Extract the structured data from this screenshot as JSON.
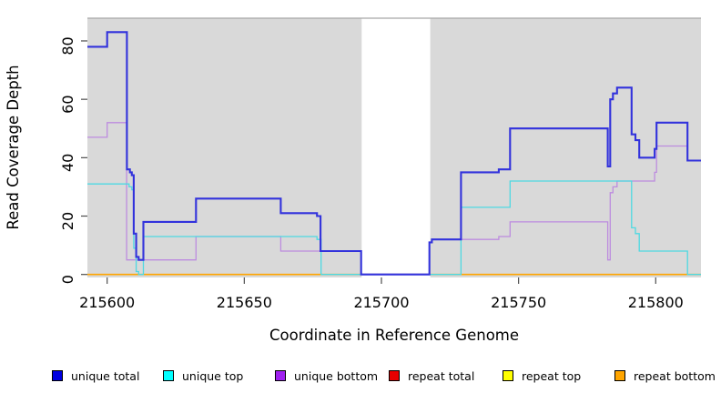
{
  "chart_data": {
    "type": "line",
    "step": true,
    "title": "",
    "xlabel": "Coordinate in Reference Genome",
    "ylabel": "Read Coverage Depth",
    "xlim": [
      215592.8,
      215816.5
    ],
    "ylim": [
      0,
      88
    ],
    "x_ticks": [
      215600,
      215650,
      215700,
      215750,
      215800
    ],
    "y_ticks": [
      0,
      20,
      40,
      60,
      80
    ],
    "grid": false,
    "panel_bg": "#D9D9D9",
    "panel_border_color": "#A8A8A8",
    "gap_region": {
      "x_start": 215692.8,
      "x_end": 215717.8,
      "color": "#FFFFFF"
    },
    "legend_position": "bottom",
    "series": [
      {
        "name": "repeat total",
        "color": "#E60000",
        "width": 1.2,
        "points": [
          [
            215592.8,
            0
          ],
          [
            215816.5,
            0
          ]
        ]
      },
      {
        "name": "repeat top",
        "color": "#FFFF00",
        "width": 1.2,
        "points": [
          [
            215592.8,
            0
          ],
          [
            215816.5,
            0
          ]
        ]
      },
      {
        "name": "repeat bottom",
        "color": "#FFA500",
        "width": 1.7,
        "points": [
          [
            215592.8,
            0
          ],
          [
            215816.5,
            0
          ]
        ]
      },
      {
        "name": "unique bottom",
        "color": "#BD8CDF",
        "width": 1.3,
        "points": [
          [
            215592.8,
            47
          ],
          [
            215600,
            52
          ],
          [
            215607.1,
            5
          ],
          [
            215632.4,
            13
          ],
          [
            215663.3,
            8
          ],
          [
            215692.6,
            0
          ],
          [
            215717.5,
            11
          ],
          [
            215718.4,
            12
          ],
          [
            215742.8,
            13
          ],
          [
            215746.9,
            18
          ],
          [
            215782.5,
            5
          ],
          [
            215783.4,
            28
          ],
          [
            215784.4,
            30
          ],
          [
            215785.9,
            32
          ],
          [
            215799.6,
            35
          ],
          [
            215800.3,
            44
          ],
          [
            215811.6,
            39
          ],
          [
            215816.5,
            39
          ]
        ]
      },
      {
        "name": "unique top",
        "color": "#4ED9E2",
        "width": 1.3,
        "points": [
          [
            215592.8,
            31
          ],
          [
            215608.0,
            30
          ],
          [
            215609.0,
            29
          ],
          [
            215609.7,
            9
          ],
          [
            215610.6,
            1
          ],
          [
            215611.5,
            0
          ],
          [
            215613.2,
            13
          ],
          [
            215676.5,
            12
          ],
          [
            215678.0,
            0
          ],
          [
            215729.0,
            23
          ],
          [
            215746.9,
            32
          ],
          [
            215791.2,
            16
          ],
          [
            215792.6,
            14
          ],
          [
            215794.0,
            8
          ],
          [
            215811.6,
            0
          ],
          [
            215816.5,
            0
          ]
        ]
      },
      {
        "name": "unique total",
        "color": "#3232DC",
        "width": 2.1,
        "points": [
          [
            215592.8,
            78
          ],
          [
            215600,
            83
          ],
          [
            215607.2,
            36
          ],
          [
            215608.3,
            35
          ],
          [
            215609.0,
            34
          ],
          [
            215609.7,
            14
          ],
          [
            215610.6,
            6
          ],
          [
            215611.5,
            5
          ],
          [
            215613.2,
            18
          ],
          [
            215632.4,
            26
          ],
          [
            215663.3,
            21
          ],
          [
            215676.5,
            20
          ],
          [
            215677.8,
            8
          ],
          [
            215692.6,
            0
          ],
          [
            215717.5,
            11
          ],
          [
            215718.4,
            12
          ],
          [
            215729.0,
            35
          ],
          [
            215742.8,
            36
          ],
          [
            215746.9,
            50
          ],
          [
            215782.5,
            37
          ],
          [
            215783.4,
            60
          ],
          [
            215784.4,
            62
          ],
          [
            215785.9,
            64
          ],
          [
            215791.2,
            48
          ],
          [
            215792.6,
            46
          ],
          [
            215794.0,
            40
          ],
          [
            215799.6,
            43
          ],
          [
            215800.3,
            52
          ],
          [
            215811.6,
            39
          ],
          [
            215816.5,
            39
          ]
        ]
      }
    ]
  },
  "legend": {
    "items": [
      {
        "label": "unique total",
        "color": "#0000E1"
      },
      {
        "label": "unique top",
        "color": "#00FFFF"
      },
      {
        "label": "unique bottom",
        "color": "#A020F0"
      },
      {
        "label": "repeat total",
        "color": "#E60000"
      },
      {
        "label": "repeat top",
        "color": "#FFFF00"
      },
      {
        "label": "repeat bottom",
        "color": "#FFA500"
      }
    ]
  }
}
